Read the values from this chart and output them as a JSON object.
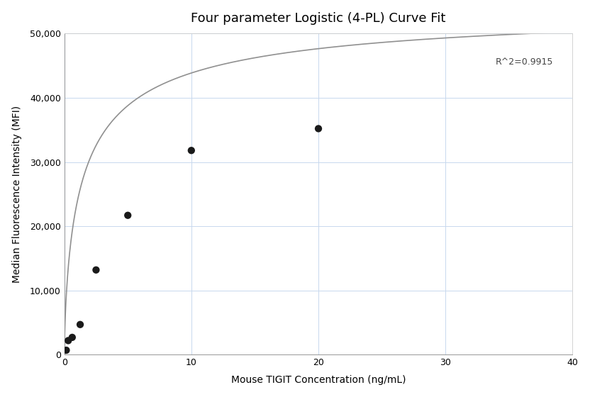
{
  "title": "Four parameter Logistic (4-PL) Curve Fit",
  "xlabel": "Mouse TIGIT Concentration (ng/mL)",
  "ylabel": "Median Fluorescence Intensity (MFI)",
  "scatter_x": [
    0.156,
    0.313,
    0.625,
    1.25,
    2.5,
    5.0,
    10.0,
    20.0
  ],
  "scatter_y": [
    700,
    2200,
    2700,
    4700,
    13200,
    21700,
    31800,
    35200
  ],
  "xlim": [
    0,
    40
  ],
  "ylim": [
    0,
    50000
  ],
  "xticks": [
    0,
    10,
    20,
    30,
    40
  ],
  "yticks": [
    0,
    10000,
    20000,
    30000,
    40000,
    50000
  ],
  "ytick_labels": [
    "0",
    "10,000",
    "20,000",
    "30,000",
    "40,000",
    "50,000"
  ],
  "r_squared": "R^2=0.9915",
  "r2_x": 38.5,
  "r2_y": 44800,
  "curve_color": "#909090",
  "scatter_color": "#1a1a1a",
  "scatter_size": 55,
  "grid_color": "#c8d8ee",
  "bg_color": "#ffffff",
  "4pl_A": 200,
  "4pl_B": 0.72,
  "4pl_C": 1.5,
  "4pl_D": 55000,
  "title_fontsize": 13,
  "label_fontsize": 10,
  "tick_fontsize": 9,
  "annotation_fontsize": 9
}
